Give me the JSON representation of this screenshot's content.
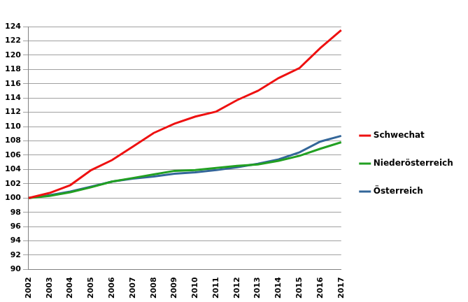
{
  "chart_data": {
    "type": "line",
    "categories": [
      "2002",
      "2003",
      "2004",
      "2005",
      "2006",
      "2007",
      "2008",
      "2009",
      "2010",
      "2011",
      "2012",
      "2013",
      "2014",
      "2015",
      "2016",
      "2017"
    ],
    "series": [
      {
        "name": "Schwechat",
        "color": "#ee1111",
        "values": [
          100,
          100.7,
          101.8,
          103.9,
          105.3,
          107.2,
          109.1,
          110.4,
          111.4,
          112.1,
          113.7,
          115.0,
          116.8,
          118.2,
          121.0,
          123.5
        ]
      },
      {
        "name": "Niederösterreich",
        "color": "#22a022",
        "values": [
          100,
          100.3,
          100.8,
          101.5,
          102.3,
          102.8,
          103.3,
          103.8,
          103.9,
          104.2,
          104.5,
          104.7,
          105.2,
          105.9,
          106.9,
          107.8
        ]
      },
      {
        "name": "Österreich",
        "color": "#336699",
        "values": [
          100,
          100.4,
          100.9,
          101.6,
          102.3,
          102.7,
          103.0,
          103.4,
          103.6,
          103.9,
          104.3,
          104.8,
          105.4,
          106.4,
          107.9,
          108.7
        ]
      }
    ],
    "ylim": [
      90,
      124
    ],
    "yticks": [
      90,
      92,
      94,
      96,
      98,
      100,
      102,
      104,
      106,
      108,
      110,
      112,
      114,
      116,
      118,
      120,
      122,
      124
    ],
    "grid": true,
    "legend": "right",
    "line_style": "solid"
  }
}
